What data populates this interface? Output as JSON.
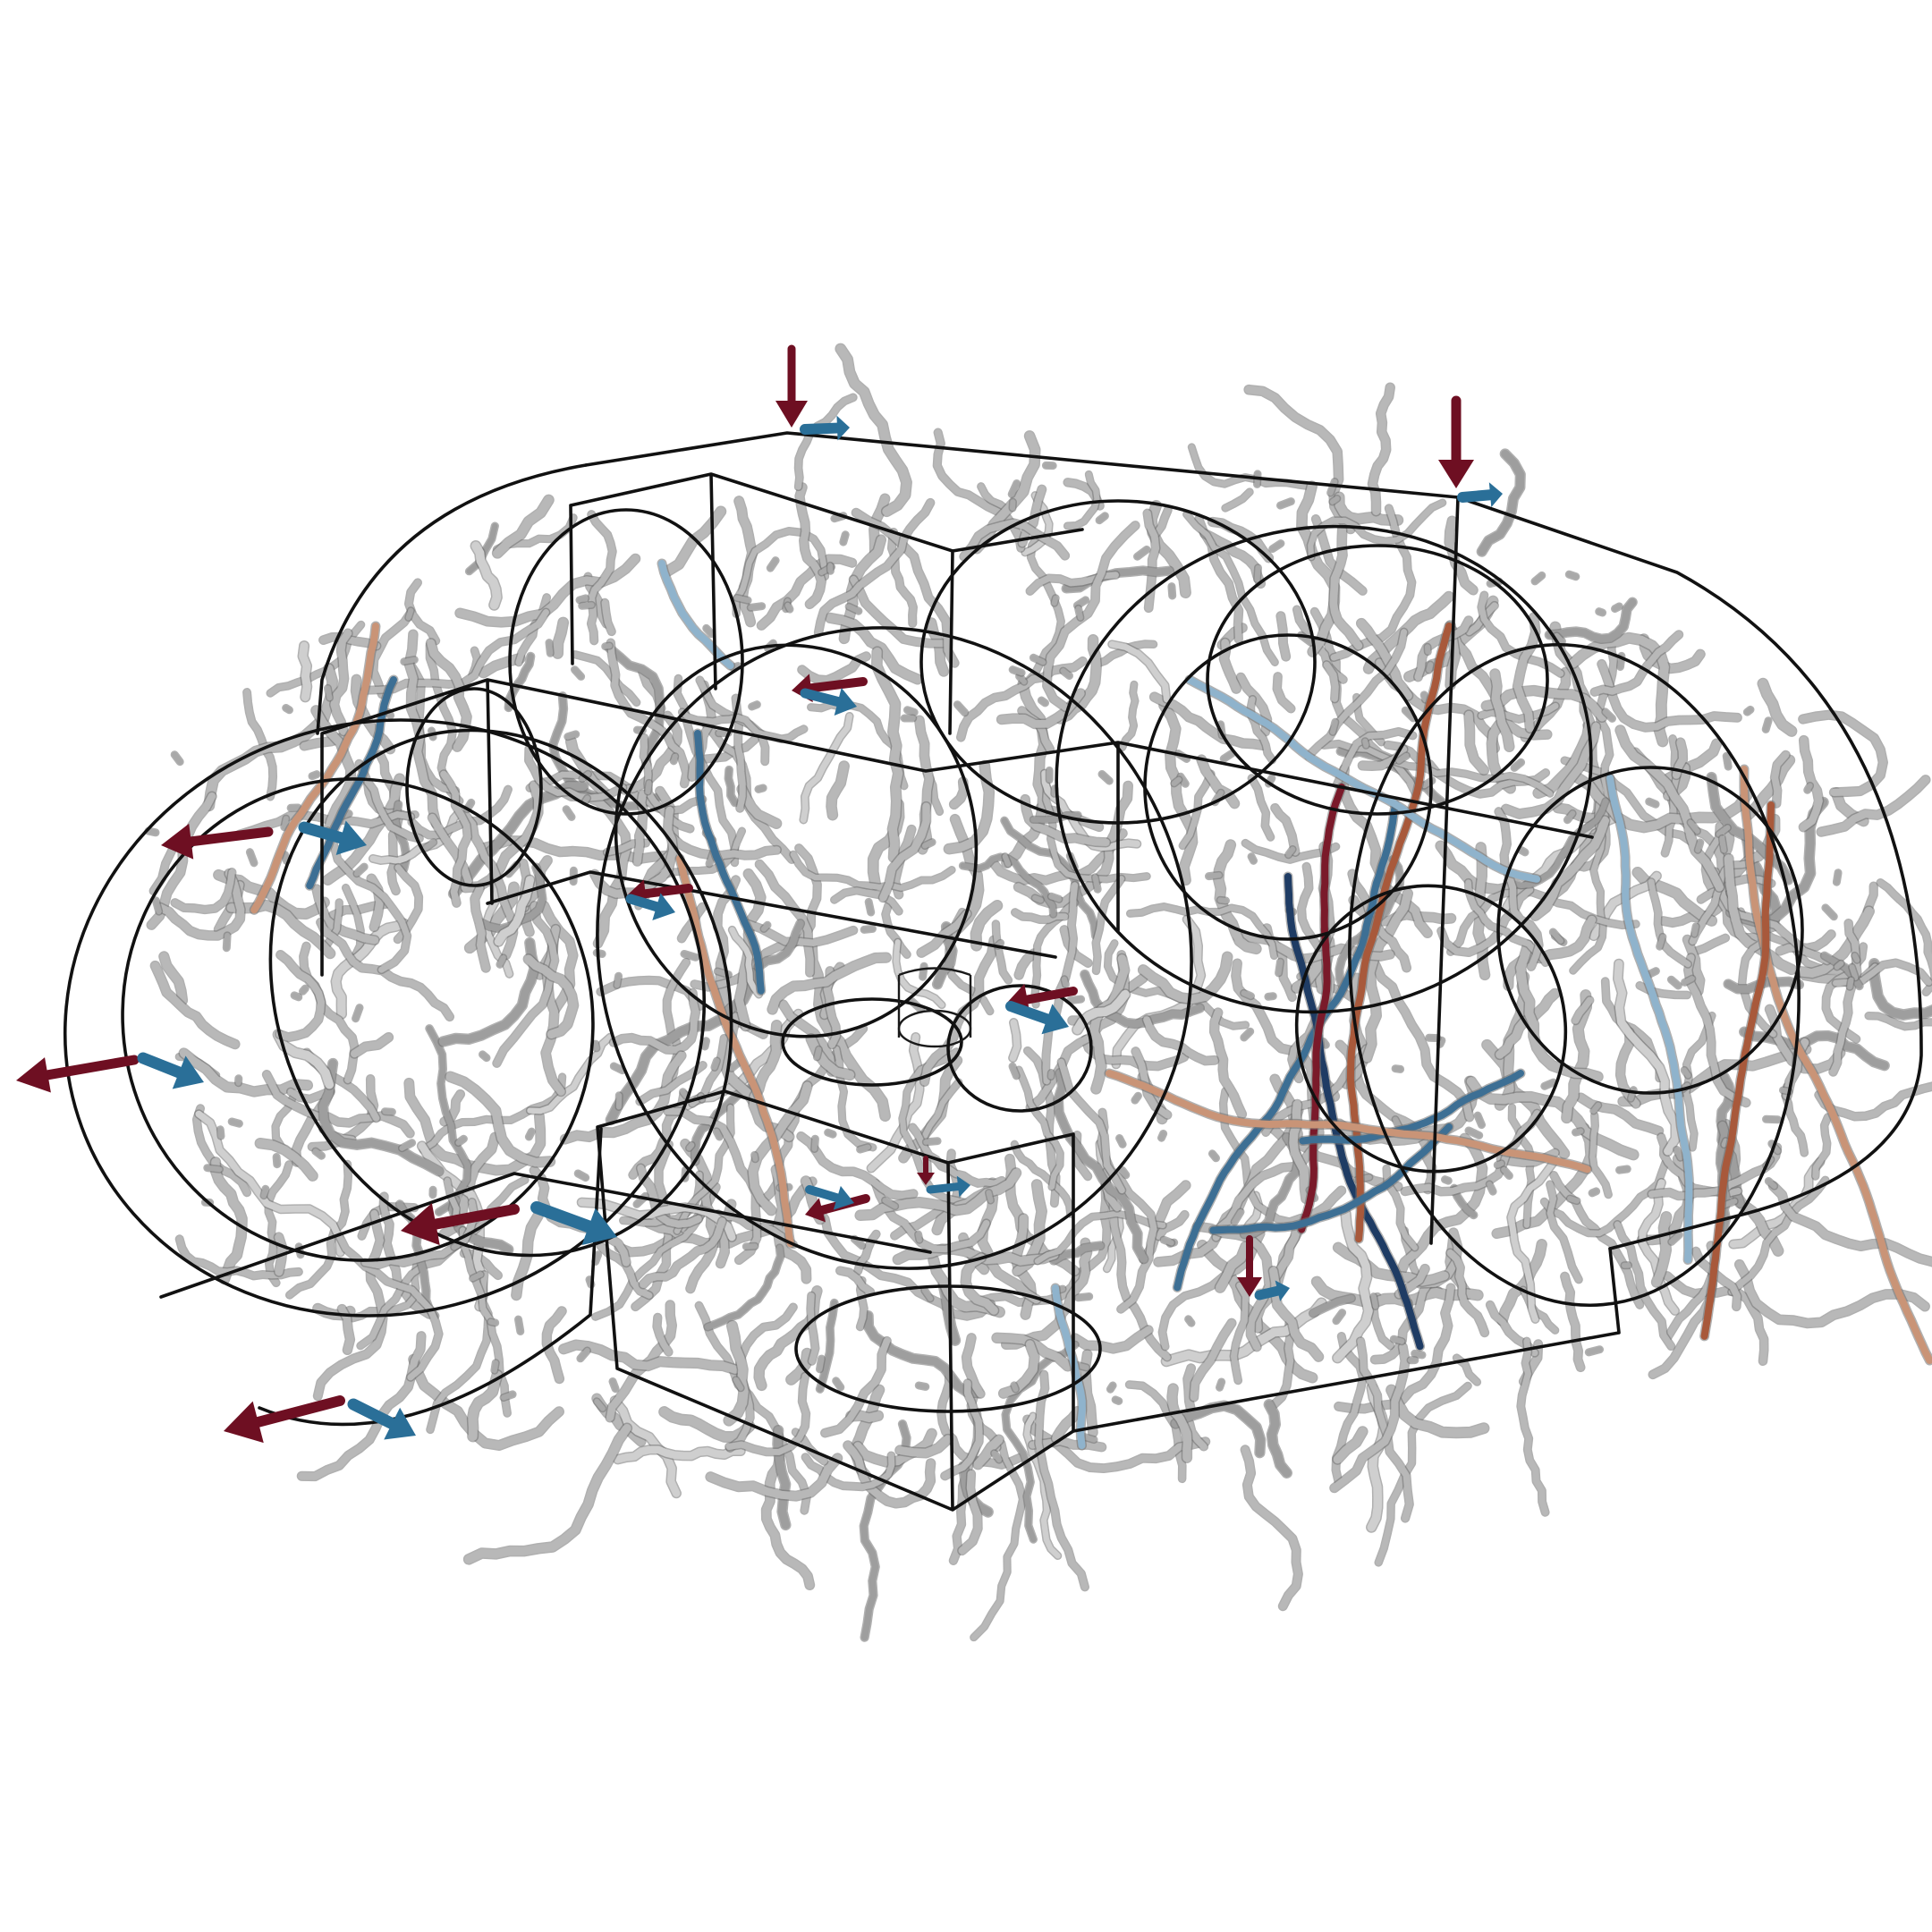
{
  "figure": {
    "background": "#ffffff",
    "wireframe_color": "#111111",
    "tube_colors": {
      "neutral": "#b8b8b8",
      "light_blue": "#8fb3cc",
      "blue": "#3d6f94",
      "dark_blue": "#1f3c64",
      "light_red": "#c99477",
      "red": "#a8593b",
      "dark_red": "#7a1a2a"
    },
    "arrow_colors": {
      "load": "#6e0f22",
      "support": "#2a6f98"
    }
  }
}
